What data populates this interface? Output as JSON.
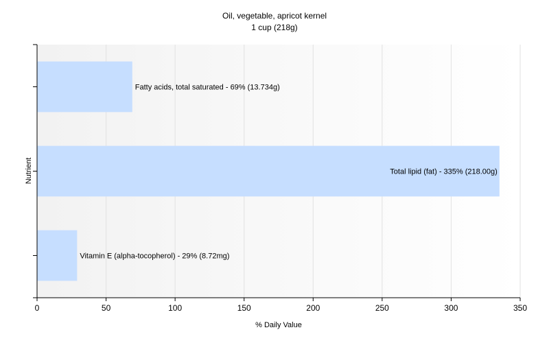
{
  "chart_data": {
    "type": "bar",
    "orientation": "horizontal",
    "title": "Oil, vegetable, apricot kernel",
    "subtitle": "1 cup (218g)",
    "xlabel": "% Daily Value",
    "ylabel": "Nutrient",
    "xlim": [
      0,
      350
    ],
    "xticks": [
      0,
      50,
      100,
      150,
      200,
      250,
      300,
      350
    ],
    "grid": true,
    "legend": "none",
    "bar_color": "#c6deff",
    "categories": [
      "Fatty acids, total saturated",
      "Total lipid (fat)",
      "Vitamin E (alpha-tocopherol)"
    ],
    "values": [
      69,
      335,
      29
    ],
    "data_labels": [
      "Fatty acids, total saturated - 69% (13.734g)",
      "Total lipid (fat) - 335% (218.00g)",
      "Vitamin E (alpha-tocopherol) - 29% (8.72mg)"
    ]
  }
}
